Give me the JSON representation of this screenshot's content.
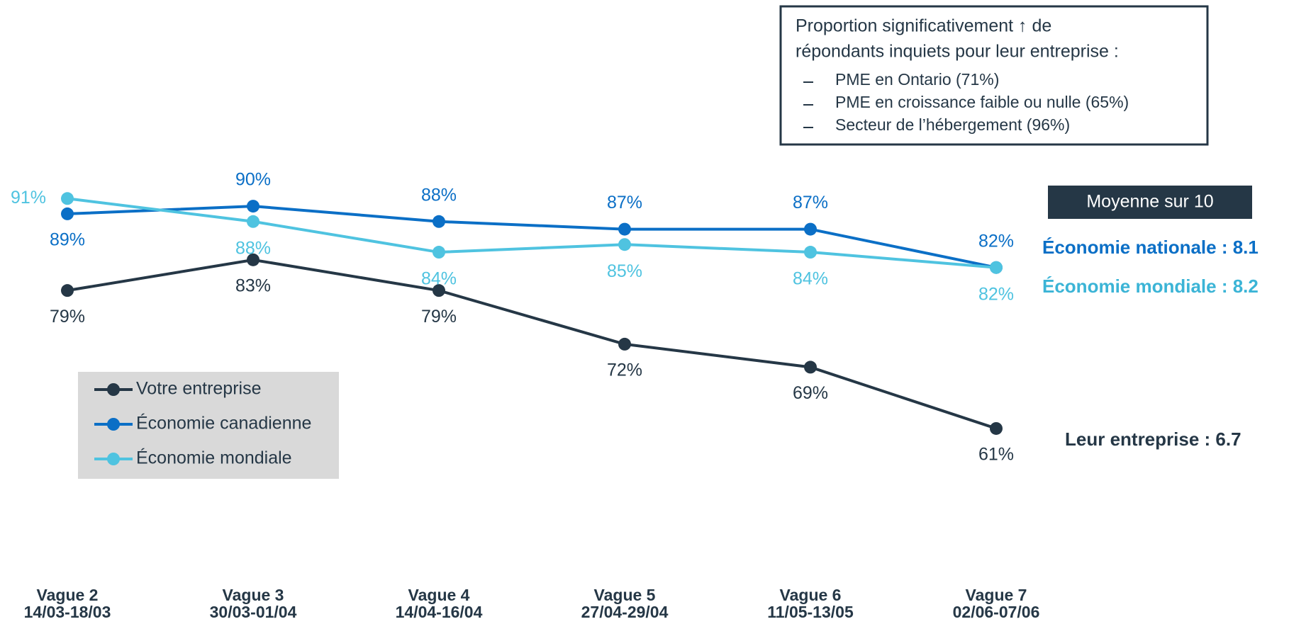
{
  "chart_data": {
    "type": "line",
    "categories": [
      "Vague 2",
      "Vague 3",
      "Vague 4",
      "Vague 5",
      "Vague 6",
      "Vague 7"
    ],
    "category_dates": [
      "14/03-18/03",
      "30/03-01/04",
      "14/04-16/04",
      "27/04-29/04",
      "11/05-13/05",
      "02/06-07/06"
    ],
    "series": [
      {
        "name": "Votre entreprise",
        "color": "#253746",
        "values": [
          79,
          83,
          79,
          72,
          69,
          61
        ],
        "value_labels": [
          "79%",
          "83%",
          "79%",
          "72%",
          "69%",
          "61%"
        ]
      },
      {
        "name": "Économie canadienne",
        "color": "#0b6fc6",
        "values": [
          89,
          90,
          88,
          87,
          87,
          82
        ],
        "value_labels": [
          "89%",
          "90%",
          "88%",
          "87%",
          "87%",
          "82%"
        ]
      },
      {
        "name": "Économie mondiale",
        "color": "#4fc3e0",
        "values": [
          91,
          88,
          84,
          85,
          84,
          82
        ],
        "value_labels": [
          "91%",
          "88%",
          "84%",
          "85%",
          "84%",
          "82%"
        ]
      }
    ],
    "ylim": [
      50,
      95
    ],
    "note": {
      "lines": [
        "Proportion significativement ↑ de",
        "répondants inquiets pour leur entreprise :"
      ],
      "items": [
        "PME en Ontario (71%)",
        "PME en croissance faible ou nulle (65%)",
        "Secteur de l’hébergement (96%)"
      ]
    },
    "averages": {
      "title": "Moyenne sur 10",
      "labels": [
        "Leur entreprise : 6.7",
        "Économie nationale : 8.1",
        "Économie mondiale : 8.2"
      ]
    }
  }
}
